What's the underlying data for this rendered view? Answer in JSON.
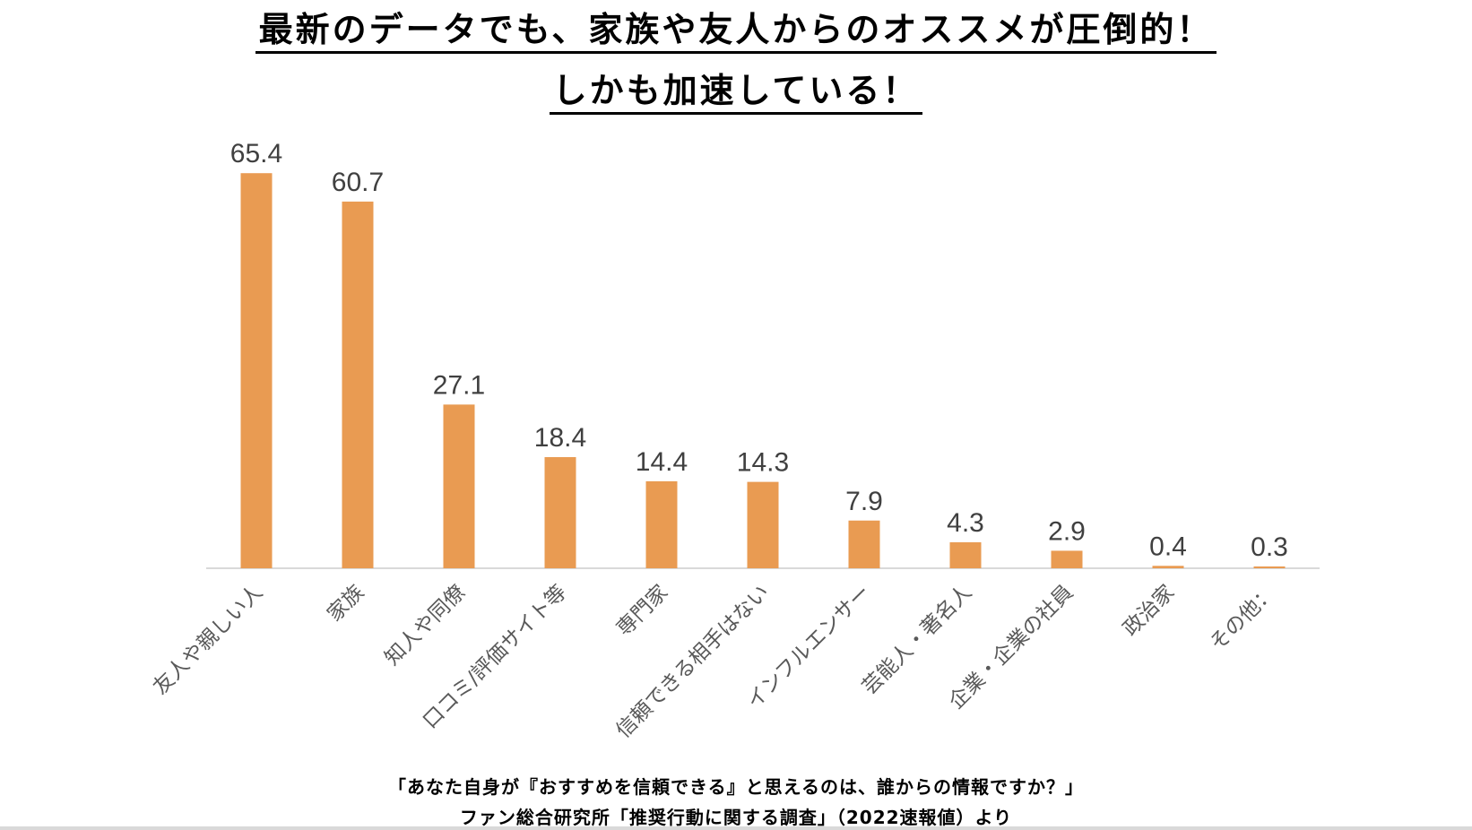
{
  "title_line1": "最新のデータでも、家族や友人からのオススメが圧倒的！",
  "title_line2": "しかも加速している！",
  "chart_data": {
    "type": "bar",
    "title": "最新のデータでも、家族や友人からのオススメが圧倒的！ しかも加速している！",
    "categories": [
      "友人や親しい人",
      "家族",
      "知人や同僚",
      "口コミ/評価サイト等",
      "専門家",
      "信頼できる相手はない",
      "インフルエンサー",
      "芸能人・著名人",
      "企業・企業の社員",
      "政治家",
      "その他："
    ],
    "values": [
      65.4,
      60.7,
      27.1,
      18.4,
      14.4,
      14.3,
      7.9,
      4.3,
      2.9,
      0.4,
      0.3
    ],
    "value_labels": [
      "65.4",
      "60.7",
      "27.1",
      "18.4",
      "14.4",
      "14.3",
      "7.9",
      "4.3",
      "2.9",
      "0.4",
      "0.3"
    ],
    "xlabel": "",
    "ylabel": "",
    "ylim": [
      0,
      70
    ],
    "grid": false,
    "bar_color": "#E99B52"
  },
  "caption_question": "「あなた自身が『おすすめを信頼できる』と思えるのは、誰からの情報ですか？」",
  "caption_source": "ファン総合研究所「推奨行動に関する調査」（2022速報値）より"
}
